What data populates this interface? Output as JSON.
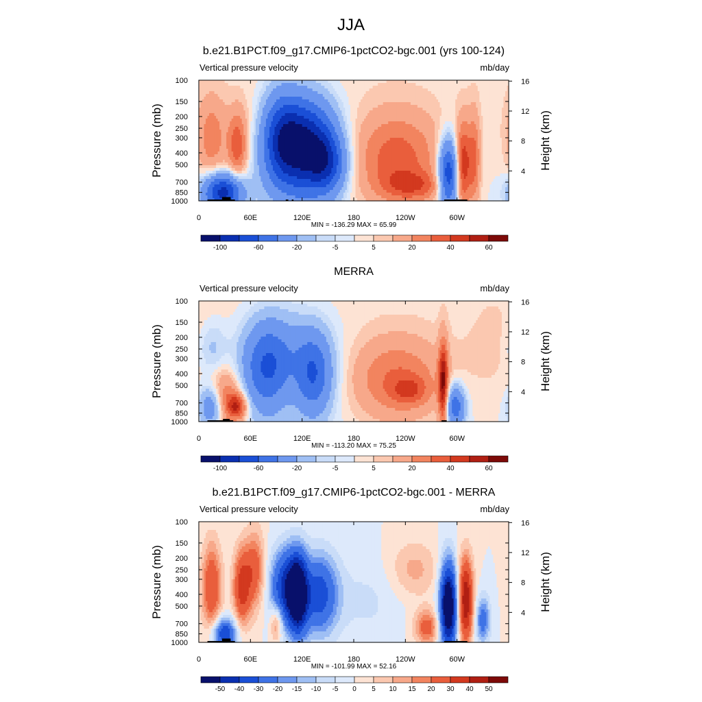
{
  "figure": {
    "title": "JJA"
  },
  "colors": {
    "neg": [
      "#08106b",
      "#0a2fb0",
      "#1a4fd6",
      "#3f73e6",
      "#6e98ef",
      "#9fbff4",
      "#c9dcf8",
      "#dde9fb"
    ],
    "pos": [
      "#fde3d4",
      "#fbc8b0",
      "#f7a88a",
      "#f2845f",
      "#e95e3c",
      "#d3391f",
      "#b01f13",
      "#7d0a08"
    ],
    "land": "#000000"
  },
  "chart_data": [
    {
      "type": "heatmap",
      "title": "b.e21.B1PCT.f09_g17.CMIP6-1pctCO2-bgc.001 (yrs 100-124)",
      "left_label": "Vertical pressure velocity",
      "right_label": "mb/day",
      "ylabel": "Pressure (mb)",
      "ylabel_right": "Height (km)",
      "x_ticks": [
        "0",
        "60E",
        "120E",
        "180",
        "120W",
        "60W"
      ],
      "x_tick_lons": [
        0,
        60,
        120,
        180,
        240,
        300
      ],
      "xlim": [
        0,
        360
      ],
      "y_ticks": [
        "100",
        "150",
        "200",
        "250",
        "300",
        "400",
        "500",
        "700",
        "850",
        "1000"
      ],
      "y_tick_values": [
        100,
        150,
        200,
        250,
        300,
        400,
        500,
        700,
        850,
        1000
      ],
      "ylim": [
        100,
        1000
      ],
      "y_right_ticks": [
        "4",
        "8",
        "12",
        "16"
      ],
      "y_right_values": [
        4,
        8,
        12,
        16
      ],
      "stats": "MIN = -136.29  MAX =  65.99",
      "colorbar_labels": [
        "-100",
        "-60",
        "-20",
        "-5",
        "5",
        "20",
        "40",
        "60"
      ],
      "features": [
        {
          "lon": 28,
          "w": 16,
          "p": 850,
          "hw": 180,
          "amp": -90
        },
        {
          "lon": 45,
          "w": 8,
          "p": 350,
          "hw": 180,
          "amp": 35
        },
        {
          "lon": 15,
          "w": 12,
          "p": 300,
          "hw": 200,
          "amp": 25
        },
        {
          "lon": 75,
          "w": 18,
          "p": 250,
          "hw": 150,
          "amp": 12
        },
        {
          "lon": 95,
          "w": 18,
          "p": 300,
          "hw": 220,
          "amp": -75
        },
        {
          "lon": 130,
          "w": 22,
          "p": 350,
          "hw": 260,
          "amp": -80
        },
        {
          "lon": 150,
          "w": 15,
          "p": 500,
          "hw": 200,
          "amp": -50
        },
        {
          "lon": 112,
          "w": 25,
          "p": 450,
          "hw": 450,
          "amp": -25
        },
        {
          "lon": 230,
          "w": 35,
          "p": 450,
          "hw": 350,
          "amp": 35
        },
        {
          "lon": 250,
          "w": 25,
          "p": 750,
          "hw": 120,
          "amp": 25
        },
        {
          "lon": 290,
          "w": 8,
          "p": 600,
          "hw": 300,
          "amp": -80
        },
        {
          "lon": 307,
          "w": 6,
          "p": 500,
          "hw": 350,
          "amp": 45
        },
        {
          "lon": 320,
          "w": 5,
          "p": 450,
          "hw": 350,
          "amp": 30
        }
      ],
      "land_blocks": [
        {
          "lon0": 10,
          "lon1": 42,
          "p": 975
        },
        {
          "lon0": 27,
          "lon1": 37,
          "p": 930
        },
        {
          "lon0": 101,
          "lon1": 104,
          "p": 975
        },
        {
          "lon0": 108,
          "lon1": 110,
          "p": 975
        },
        {
          "lon0": 285,
          "lon1": 312,
          "p": 975
        }
      ]
    },
    {
      "type": "heatmap",
      "title": "MERRA",
      "left_label": "Vertical pressure velocity",
      "right_label": "mb/day",
      "ylabel": "Pressure (mb)",
      "ylabel_right": "Height (km)",
      "x_ticks": [
        "0",
        "60E",
        "120E",
        "180",
        "120W",
        "60W"
      ],
      "x_tick_lons": [
        0,
        60,
        120,
        180,
        240,
        300
      ],
      "xlim": [
        0,
        360
      ],
      "y_ticks": [
        "100",
        "150",
        "200",
        "250",
        "300",
        "400",
        "500",
        "700",
        "850",
        "1000"
      ],
      "y_tick_values": [
        100,
        150,
        200,
        250,
        300,
        400,
        500,
        700,
        850,
        1000
      ],
      "ylim": [
        100,
        1000
      ],
      "y_right_ticks": [
        "4",
        "8",
        "12",
        "16"
      ],
      "y_right_values": [
        4,
        8,
        12,
        16
      ],
      "stats": "MIN = -113.20  MAX =  75.25",
      "colorbar_labels": [
        "-100",
        "-60",
        "-20",
        "-5",
        "5",
        "20",
        "40",
        "60"
      ],
      "features": [
        {
          "lon": 30,
          "w": 14,
          "p": 650,
          "hw": 250,
          "amp": 35
        },
        {
          "lon": 45,
          "w": 8,
          "p": 750,
          "hw": 100,
          "amp": 40
        },
        {
          "lon": 15,
          "w": 10,
          "p": 750,
          "hw": 200,
          "amp": -45
        },
        {
          "lon": 15,
          "w": 12,
          "p": 250,
          "hw": 100,
          "amp": -15
        },
        {
          "lon": 80,
          "w": 20,
          "p": 350,
          "hw": 250,
          "amp": -55
        },
        {
          "lon": 105,
          "w": 15,
          "p": 500,
          "hw": 250,
          "amp": 12
        },
        {
          "lon": 133,
          "w": 15,
          "p": 400,
          "hw": 250,
          "amp": -50
        },
        {
          "lon": 110,
          "w": 35,
          "p": 350,
          "hw": 350,
          "amp": -20
        },
        {
          "lon": 230,
          "w": 38,
          "p": 450,
          "hw": 300,
          "amp": 30
        },
        {
          "lon": 245,
          "w": 15,
          "p": 550,
          "hw": 80,
          "amp": 20
        },
        {
          "lon": 284,
          "w": 4,
          "p": 500,
          "hw": 350,
          "amp": 55
        },
        {
          "lon": 298,
          "w": 8,
          "p": 750,
          "hw": 200,
          "amp": -55
        },
        {
          "lon": 345,
          "w": 25,
          "p": 250,
          "hw": 200,
          "amp": 5
        }
      ],
      "land_blocks": [
        {
          "lon0": 10,
          "lon1": 40,
          "p": 975
        },
        {
          "lon0": 28,
          "lon1": 36,
          "p": 950
        },
        {
          "lon0": 282,
          "lon1": 288,
          "p": 975
        }
      ]
    },
    {
      "type": "heatmap",
      "title": "b.e21.B1PCT.f09_g17.CMIP6-1pctCO2-bgc.001 - MERRA",
      "left_label": "Vertical pressure velocity",
      "right_label": "mb/day",
      "ylabel": "Pressure (mb)",
      "ylabel_right": "Height (km)",
      "x_ticks": [
        "0",
        "60E",
        "120E",
        "180",
        "120W",
        "60W"
      ],
      "x_tick_lons": [
        0,
        60,
        120,
        180,
        240,
        300
      ],
      "xlim": [
        0,
        360
      ],
      "y_ticks": [
        "100",
        "150",
        "200",
        "250",
        "300",
        "400",
        "500",
        "700",
        "850",
        "1000"
      ],
      "y_tick_values": [
        100,
        150,
        200,
        250,
        300,
        400,
        500,
        700,
        850,
        1000
      ],
      "ylim": [
        100,
        1000
      ],
      "y_right_ticks": [
        "4",
        "8",
        "12",
        "16"
      ],
      "y_right_values": [
        4,
        8,
        12,
        16
      ],
      "stats": "MIN = -101.99  MAX =  52.16",
      "colorbar_labels": [
        "-50",
        "-40",
        "-30",
        "-20",
        "-15",
        "-10",
        "-5",
        "0",
        "5",
        "10",
        "15",
        "20",
        "30",
        "40",
        "50"
      ],
      "features": [
        {
          "lon": 15,
          "w": 8,
          "p": 350,
          "hw": 250,
          "amp": 30
        },
        {
          "lon": 30,
          "w": 10,
          "p": 850,
          "hw": 150,
          "amp": -40
        },
        {
          "lon": 50,
          "w": 7,
          "p": 350,
          "hw": 200,
          "amp": 35
        },
        {
          "lon": 65,
          "w": 8,
          "p": 250,
          "hw": 150,
          "amp": 25
        },
        {
          "lon": 100,
          "w": 12,
          "p": 350,
          "hw": 200,
          "amp": -40
        },
        {
          "lon": 115,
          "w": 8,
          "p": 400,
          "hw": 250,
          "amp": -60
        },
        {
          "lon": 140,
          "w": 15,
          "p": 400,
          "hw": 250,
          "amp": -35
        },
        {
          "lon": 90,
          "w": 5,
          "p": 700,
          "hw": 150,
          "amp": 20
        },
        {
          "lon": 195,
          "w": 30,
          "p": 450,
          "hw": 300,
          "amp": -6
        },
        {
          "lon": 250,
          "w": 20,
          "p": 250,
          "hw": 100,
          "amp": 12
        },
        {
          "lon": 265,
          "w": 10,
          "p": 750,
          "hw": 150,
          "amp": 25
        },
        {
          "lon": 290,
          "w": 7,
          "p": 500,
          "hw": 350,
          "amp": -70
        },
        {
          "lon": 310,
          "w": 6,
          "p": 450,
          "hw": 300,
          "amp": 50
        },
        {
          "lon": 330,
          "w": 6,
          "p": 650,
          "hw": 200,
          "amp": -25
        }
      ],
      "land_blocks": [
        {
          "lon0": 10,
          "lon1": 42,
          "p": 975
        },
        {
          "lon0": 27,
          "lon1": 37,
          "p": 930
        },
        {
          "lon0": 101,
          "lon1": 104,
          "p": 975
        },
        {
          "lon0": 115,
          "lon1": 118,
          "p": 975
        },
        {
          "lon0": 285,
          "lon1": 312,
          "p": 975
        }
      ]
    }
  ]
}
